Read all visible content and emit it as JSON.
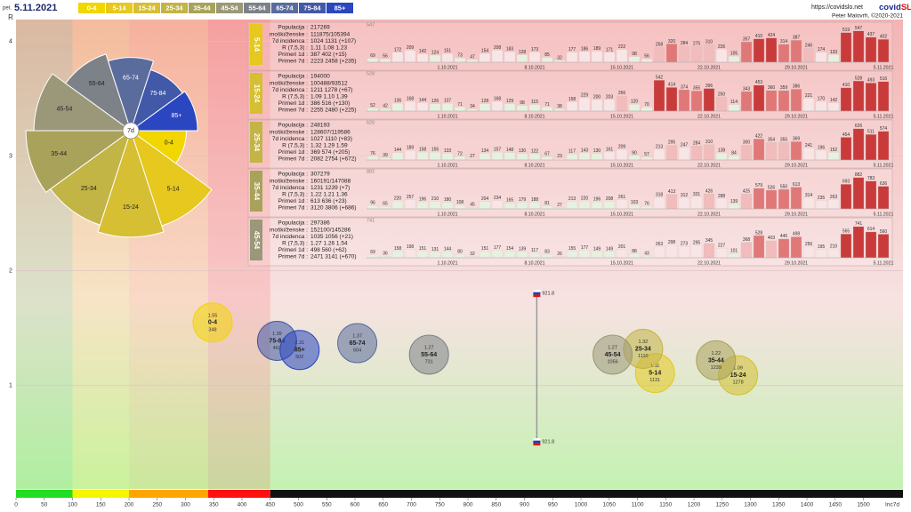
{
  "header": {
    "day": "pet.",
    "date": "5.11.2021",
    "url": "https://covidslo.net",
    "brand_a": "covid",
    "brand_b": "SLO",
    "author": "Peter Malovrh, ©2020-2021"
  },
  "stat_labels": [
    "Populacija :",
    "moški/ženske :",
    "7d incidenca :",
    "R (7,5,3) :",
    "Primeri 1d :",
    "Primeri 7d :"
  ],
  "chart_data": [
    {
      "type": "bubble",
      "x_label": "Inc7d",
      "y_label": "R",
      "rose_label": "7d",
      "xlim": [
        0,
        1570
      ],
      "ylim": [
        0.1,
        4.19
      ],
      "xticks": [
        0,
        50,
        100,
        150,
        200,
        250,
        300,
        350,
        400,
        450,
        500,
        550,
        600,
        650,
        700,
        750,
        800,
        850,
        900,
        950,
        1000,
        1050,
        1100,
        1150,
        1200,
        1250,
        1300,
        1350,
        1400,
        1450,
        1500
      ],
      "yticks": [
        1,
        2,
        3,
        4
      ],
      "grid": true,
      "reference": 921.8,
      "zones": [
        {
          "to": 100,
          "color": "#22dd22"
        },
        {
          "to": 200,
          "color": "#f5f500"
        },
        {
          "to": 340,
          "color": "#ffa500"
        },
        {
          "to": 450,
          "color": "#ff1010"
        },
        {
          "color": "#111111"
        }
      ],
      "series": [
        {
          "name": "0-4",
          "color": "#f2d600",
          "x": [
            348
          ],
          "values": [
            1.55
          ]
        },
        {
          "name": "5-14",
          "color": "#e6c81e",
          "x": [
            1131
          ],
          "values": [
            1.11
          ]
        },
        {
          "name": "15-24",
          "color": "#d6bf32",
          "x": [
            1278
          ],
          "values": [
            1.09
          ]
        },
        {
          "name": "25-34",
          "color": "#c3b446",
          "x": [
            1110
          ],
          "values": [
            1.32
          ]
        },
        {
          "name": "35-44",
          "color": "#a9a25a",
          "x": [
            1239
          ],
          "values": [
            1.22
          ]
        },
        {
          "name": "45-54",
          "color": "#9a9878",
          "x": [
            1056
          ],
          "values": [
            1.27
          ]
        },
        {
          "name": "55-64",
          "color": "#7d8288",
          "x": [
            731
          ],
          "values": [
            1.27
          ]
        },
        {
          "name": "65-74",
          "color": "#5a6c9c",
          "x": [
            604
          ],
          "values": [
            1.37
          ]
        },
        {
          "name": "75-84",
          "color": "#4258a8",
          "x": [
            462
          ],
          "values": [
            1.39
          ]
        },
        {
          "name": "85+",
          "color": "#2a46c0",
          "x": [
            502
          ],
          "values": [
            1.31
          ]
        }
      ]
    },
    {
      "type": "bar",
      "title": "5-14",
      "color": "#e6c81e",
      "max_label": 547,
      "ylim": [
        0,
        560
      ],
      "stats": [
        "217269",
        "111875/105394",
        "1024 1131 (+107)",
        "1.11 1.08 1.23",
        "387 402 (+15)",
        "2223 2458 (+235)"
      ],
      "categories": [
        null,
        null,
        null,
        null,
        null,
        null,
        "1.10.2021",
        null,
        null,
        null,
        null,
        null,
        null,
        "8.10.2021",
        null,
        null,
        null,
        null,
        null,
        null,
        "15.10.2021",
        null,
        null,
        null,
        null,
        null,
        null,
        "22.10.2021",
        null,
        null,
        null,
        null,
        null,
        null,
        "29.10.2021",
        null,
        null,
        null,
        null,
        null,
        null,
        "5.11.2021"
      ],
      "values": [
        69,
        56,
        172,
        209,
        142,
        124,
        151,
        73,
        47,
        154,
        208,
        183,
        128,
        173,
        85,
        32,
        177,
        186,
        189,
        171,
        222,
        98,
        56,
        258,
        320,
        284,
        275,
        310,
        226,
        105,
        357,
        410,
        424,
        314,
        387,
        246,
        174,
        133,
        519,
        547,
        437,
        402
      ]
    },
    {
      "type": "bar",
      "title": "15-24",
      "color": "#d6bf32",
      "max_label": 528,
      "ylim": [
        0,
        560
      ],
      "stats": [
        "194000",
        "100488/93512",
        "1211 1278 (+67)",
        "1.09 1.10 1.39",
        "386 516 (+130)",
        "2255 2480 (+225)"
      ],
      "categories": [
        null,
        null,
        null,
        null,
        null,
        null,
        "1.10.2021",
        null,
        null,
        null,
        null,
        null,
        null,
        "8.10.2021",
        null,
        null,
        null,
        null,
        null,
        null,
        "15.10.2021",
        null,
        null,
        null,
        null,
        null,
        null,
        "22.10.2021",
        null,
        null,
        null,
        null,
        null,
        null,
        "29.10.2021",
        null,
        null,
        null,
        null,
        null,
        null,
        "5.11.2021"
      ],
      "values": [
        52,
        42,
        136,
        168,
        144,
        126,
        137,
        71,
        34,
        128,
        168,
        129,
        98,
        115,
        71,
        38,
        158,
        229,
        200,
        203,
        266,
        120,
        70,
        542,
        414,
        374,
        355,
        396,
        250,
        114,
        343,
        453,
        360,
        359,
        386,
        221,
        170,
        142,
        410,
        528,
        493,
        516
      ]
    },
    {
      "type": "bar",
      "title": "25-34",
      "color": "#c3b446",
      "max_label": 626,
      "ylim": [
        0,
        640
      ],
      "stats": [
        "248193",
        "128607/119586",
        "1027 1110 (+83)",
        "1.32 1.29 1.59",
        "369 574 (+205)",
        "2082 2754 (+672)"
      ],
      "categories": [
        null,
        null,
        null,
        null,
        null,
        null,
        "1.10.2021",
        null,
        null,
        null,
        null,
        null,
        null,
        "8.10.2021",
        null,
        null,
        null,
        null,
        null,
        null,
        "15.10.2021",
        null,
        null,
        null,
        null,
        null,
        null,
        "22.10.2021",
        null,
        null,
        null,
        null,
        null,
        null,
        "29.10.2021",
        null,
        null,
        null,
        null,
        null,
        null,
        "5.11.2021"
      ],
      "values": [
        76,
        39,
        144,
        189,
        158,
        156,
        133,
        72,
        27,
        134,
        157,
        148,
        130,
        122,
        67,
        23,
        117,
        143,
        130,
        161,
        209,
        90,
        57,
        213,
        295,
        247,
        284,
        310,
        138,
        84,
        300,
        422,
        354,
        355,
        369,
        241,
        196,
        152,
        454,
        626,
        511,
        574
      ]
    },
    {
      "type": "bar",
      "title": "35-44",
      "color": "#a9a25a",
      "max_label": 882,
      "ylim": [
        0,
        900
      ],
      "stats": [
        "307279",
        "160191/147088",
        "1231 1239 (+7)",
        "1.22 1.21 1.36",
        "613 636 (+23)",
        "3120 3806 (+686)"
      ],
      "categories": [
        null,
        null,
        null,
        null,
        null,
        null,
        "1.10.2021",
        null,
        null,
        null,
        null,
        null,
        null,
        "8.10.2021",
        null,
        null,
        null,
        null,
        null,
        null,
        "15.10.2021",
        null,
        null,
        null,
        null,
        null,
        null,
        "22.10.2021",
        null,
        null,
        null,
        null,
        null,
        null,
        "29.10.2021",
        null,
        null,
        null,
        null,
        null,
        null,
        "5.11.2021"
      ],
      "values": [
        96,
        65,
        220,
        257,
        196,
        210,
        180,
        108,
        45,
        204,
        234,
        165,
        179,
        188,
        81,
        27,
        213,
        220,
        196,
        208,
        261,
        103,
        76,
        318,
        413,
        312,
        331,
        426,
        288,
        139,
        425,
        579,
        526,
        550,
        613,
        314,
        235,
        263,
        693,
        882,
        783,
        636
      ]
    },
    {
      "type": "bar",
      "title": "45-54",
      "color": "#9a9878",
      "max_label": 741,
      "ylim": [
        0,
        760
      ],
      "stats": [
        "297386",
        "152100/145286",
        "1035 1056 (+21)",
        "1.27 1.26 1.54",
        "498 560 (+62)",
        "2471 3141 (+670)"
      ],
      "categories": [
        null,
        null,
        null,
        null,
        null,
        null,
        "1.10.2021",
        null,
        null,
        null,
        null,
        null,
        null,
        "8.10.2021",
        null,
        null,
        null,
        null,
        null,
        null,
        "15.10.2021",
        null,
        null,
        null,
        null,
        null,
        null,
        "22.10.2021",
        null,
        null,
        null,
        null,
        null,
        null,
        "29.10.2021",
        null,
        null,
        null,
        null,
        null,
        null,
        "5.11.2021"
      ],
      "values": [
        69,
        36,
        158,
        198,
        151,
        131,
        144,
        80,
        32,
        151,
        177,
        154,
        139,
        117,
        83,
        26,
        155,
        177,
        149,
        149,
        201,
        88,
        43,
        263,
        298,
        273,
        295,
        345,
        227,
        101,
        368,
        528,
        403,
        446,
        498,
        256,
        195,
        210,
        565,
        741,
        614,
        560
      ]
    }
  ]
}
